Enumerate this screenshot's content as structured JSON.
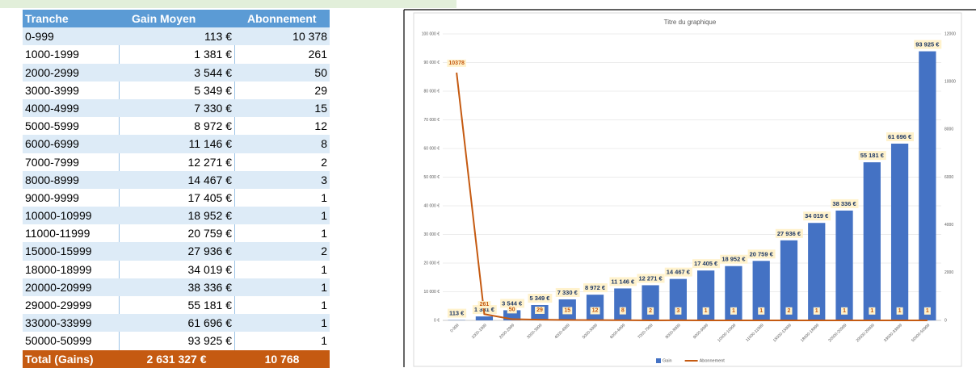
{
  "table": {
    "headers": [
      "Tranche",
      "Gain Moyen",
      "Abonnement"
    ],
    "rows": [
      [
        "0-999",
        "113 €",
        "10 378"
      ],
      [
        "1000-1999",
        "1 381 €",
        "261"
      ],
      [
        "2000-2999",
        "3 544 €",
        "50"
      ],
      [
        "3000-3999",
        "5 349 €",
        "29"
      ],
      [
        "4000-4999",
        "7 330 €",
        "15"
      ],
      [
        "5000-5999",
        "8 972 €",
        "12"
      ],
      [
        "6000-6999",
        "11 146 €",
        "8"
      ],
      [
        "7000-7999",
        "12 271 €",
        "2"
      ],
      [
        "8000-8999",
        "14 467 €",
        "3"
      ],
      [
        "9000-9999",
        "17 405 €",
        "1"
      ],
      [
        "10000-10999",
        "18 952 €",
        "1"
      ],
      [
        "11000-11999",
        "20 759 €",
        "1"
      ],
      [
        "15000-15999",
        "27 936 €",
        "2"
      ],
      [
        "18000-18999",
        "34 019 €",
        "1"
      ],
      [
        "20000-20999",
        "38 336 €",
        "1"
      ],
      [
        "29000-29999",
        "55 181 €",
        "1"
      ],
      [
        "33000-33999",
        "61 696 €",
        "1"
      ],
      [
        "50000-50999",
        "93 925 €",
        "1"
      ]
    ],
    "total": [
      "Total (Gains)",
      "2 631 327 €",
      "10 768"
    ]
  },
  "chart_data": {
    "type": "bar-line",
    "title": "Titre du graphique",
    "categories": [
      "0-999",
      "1000-1999",
      "2000-2999",
      "3000-3999",
      "4000-4999",
      "5000-5999",
      "6000-6999",
      "7000-7999",
      "8000-8999",
      "9000-9999",
      "10000-10999",
      "11000-11999",
      "15000-15999",
      "18000-18999",
      "20000-20999",
      "29000-29999",
      "33000-33999",
      "50000-50999"
    ],
    "series": [
      {
        "name": "Gain",
        "type": "bar",
        "color": "#4472c4",
        "values": [
          113,
          1381,
          3544,
          5349,
          7330,
          8972,
          11146,
          12271,
          14467,
          17405,
          18952,
          20759,
          27936,
          34019,
          38336,
          55181,
          61696,
          93925
        ],
        "value_labels": [
          "113 €",
          "1 381 €",
          "3 544 €",
          "5 349 €",
          "7 330 €",
          "8 972 €",
          "11 146 €",
          "12 271 €",
          "14 467 €",
          "17 405 €",
          "18 952 €",
          "20 759 €",
          "27 936 €",
          "34 019 €",
          "38 336 €",
          "55 181 €",
          "61 696 €",
          "93 925 €"
        ]
      },
      {
        "name": "Abonnement",
        "type": "line",
        "color": "#c55a11",
        "axis": "y2",
        "values": [
          10378,
          261,
          50,
          29,
          15,
          12,
          8,
          2,
          3,
          1,
          1,
          1,
          2,
          1,
          1,
          1,
          1,
          1
        ]
      }
    ],
    "ylim": [
      0,
      100000
    ],
    "yticks": [
      {
        "value": 0,
        "label": "0 €"
      },
      {
        "value": 10000,
        "label": "10 000 €"
      },
      {
        "value": 20000,
        "label": "20 000 €"
      },
      {
        "value": 30000,
        "label": "30 000 €"
      },
      {
        "value": 40000,
        "label": "40 000 €"
      },
      {
        "value": 50000,
        "label": "50 000 €"
      },
      {
        "value": 60000,
        "label": "60 000 €"
      },
      {
        "value": 70000,
        "label": "70 000 €"
      },
      {
        "value": 80000,
        "label": "80 000 €"
      },
      {
        "value": 90000,
        "label": "90 000 €"
      },
      {
        "value": 100000,
        "label": "100 000 €"
      }
    ],
    "y2lim": [
      0,
      12000
    ],
    "y2ticks": [
      0,
      2000,
      4000,
      6000,
      8000,
      10000,
      12000
    ],
    "grid": true,
    "legend": "bottom"
  }
}
